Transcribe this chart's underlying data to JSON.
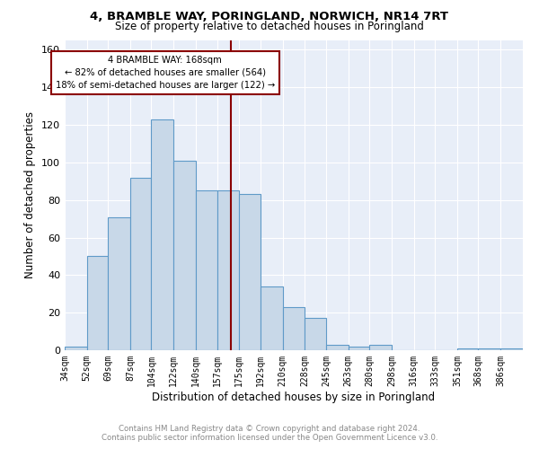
{
  "title": "4, BRAMBLE WAY, PORINGLAND, NORWICH, NR14 7RT",
  "subtitle": "Size of property relative to detached houses in Poringland",
  "xlabel": "Distribution of detached houses by size in Poringland",
  "ylabel": "Number of detached properties",
  "bar_labels": [
    "34sqm",
    "52sqm",
    "69sqm",
    "87sqm",
    "104sqm",
    "122sqm",
    "140sqm",
    "157sqm",
    "175sqm",
    "192sqm",
    "210sqm",
    "228sqm",
    "245sqm",
    "263sqm",
    "280sqm",
    "298sqm",
    "316sqm",
    "333sqm",
    "351sqm",
    "368sqm",
    "386sqm"
  ],
  "bar_values": [
    2,
    50,
    71,
    92,
    123,
    101,
    85,
    85,
    83,
    34,
    23,
    17,
    3,
    2,
    3,
    0,
    0,
    0,
    1,
    1,
    1
  ],
  "bar_color": "#c8d8e8",
  "bar_edge_color": "#5f9ac8",
  "property_line_color": "#8b0000",
  "annotation_text": "4 BRAMBLE WAY: 168sqm\n← 82% of detached houses are smaller (564)\n18% of semi-detached houses are larger (122) →",
  "annotation_box_color": "#ffffff",
  "annotation_box_edge_color": "#8b0000",
  "ylim": [
    0,
    165
  ],
  "footer_line1": "Contains HM Land Registry data © Crown copyright and database right 2024.",
  "footer_line2": "Contains public sector information licensed under the Open Government Licence v3.0.",
  "background_color": "#e8eef8",
  "bin_edges": [
    34,
    52,
    69,
    87,
    104,
    122,
    140,
    157,
    175,
    192,
    210,
    228,
    245,
    263,
    280,
    298,
    316,
    333,
    351,
    368,
    386,
    404
  ]
}
